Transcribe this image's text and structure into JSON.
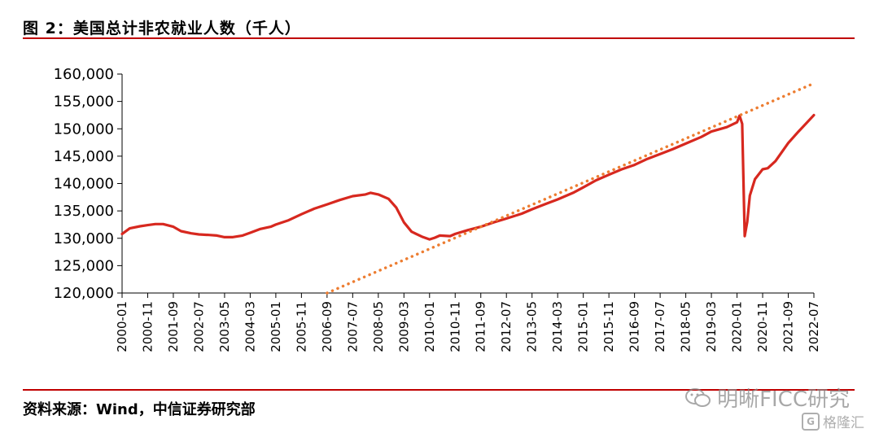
{
  "header": {
    "title": "图 2：美国总计非农就业人数（千人）"
  },
  "footer": {
    "source": "资料来源：Wind，中信证券研究部"
  },
  "watermark": {
    "text": "明晰FICC研究",
    "text2": "格隆汇"
  },
  "colors": {
    "rule": "#c00000",
    "series": "#d7281f",
    "trend": "#ed7d31"
  },
  "chart_data": {
    "type": "line",
    "title": "图 2：美国总计非农就业人数（千人）",
    "xlabel": "",
    "ylabel": "",
    "ylim": [
      120000,
      160000
    ],
    "yticks": [
      "120,000",
      "125,000",
      "130,000",
      "135,000",
      "140,000",
      "145,000",
      "150,000",
      "155,000",
      "160,000"
    ],
    "ytick_values": [
      120000,
      125000,
      130000,
      135000,
      140000,
      145000,
      150000,
      155000,
      160000
    ],
    "xtick_labels": [
      "2000-01",
      "2000-11",
      "2001-09",
      "2002-07",
      "2003-05",
      "2004-03",
      "2005-01",
      "2005-11",
      "2006-09",
      "2007-07",
      "2008-05",
      "2009-03",
      "2010-01",
      "2010-11",
      "2011-09",
      "2012-07",
      "2013-05",
      "2014-03",
      "2015-01",
      "2015-11",
      "2016-09",
      "2017-07",
      "2018-05",
      "2019-03",
      "2020-01",
      "2020-11",
      "2021-09",
      "2022-07"
    ],
    "grid": false,
    "legend": "none",
    "series": [
      {
        "name": "",
        "style": "solid",
        "points": [
          [
            "2000-01",
            130800
          ],
          [
            "2000-04",
            131800
          ],
          [
            "2000-08",
            132200
          ],
          [
            "2000-11",
            132400
          ],
          [
            "2001-02",
            132600
          ],
          [
            "2001-05",
            132600
          ],
          [
            "2001-09",
            132100
          ],
          [
            "2001-12",
            131300
          ],
          [
            "2002-04",
            130900
          ],
          [
            "2002-07",
            130700
          ],
          [
            "2002-11",
            130600
          ],
          [
            "2003-02",
            130500
          ],
          [
            "2003-05",
            130200
          ],
          [
            "2003-08",
            130200
          ],
          [
            "2003-12",
            130500
          ],
          [
            "2004-03",
            131000
          ],
          [
            "2004-07",
            131700
          ],
          [
            "2004-11",
            132100
          ],
          [
            "2005-01",
            132500
          ],
          [
            "2005-06",
            133300
          ],
          [
            "2005-11",
            134400
          ],
          [
            "2006-04",
            135400
          ],
          [
            "2006-09",
            136200
          ],
          [
            "2007-02",
            137000
          ],
          [
            "2007-07",
            137700
          ],
          [
            "2007-12",
            138000
          ],
          [
            "2008-02",
            138300
          ],
          [
            "2008-05",
            138000
          ],
          [
            "2008-09",
            137200
          ],
          [
            "2008-12",
            135600
          ],
          [
            "2009-03",
            132900
          ],
          [
            "2009-06",
            131200
          ],
          [
            "2009-10",
            130300
          ],
          [
            "2010-01",
            129800
          ],
          [
            "2010-03",
            130100
          ],
          [
            "2010-05",
            130500
          ],
          [
            "2010-09",
            130400
          ],
          [
            "2010-11",
            130800
          ],
          [
            "2011-04",
            131500
          ],
          [
            "2011-09",
            132100
          ],
          [
            "2012-02",
            132900
          ],
          [
            "2012-07",
            133600
          ],
          [
            "2013-01",
            134500
          ],
          [
            "2013-05",
            135300
          ],
          [
            "2013-11",
            136400
          ],
          [
            "2014-03",
            137100
          ],
          [
            "2014-09",
            138300
          ],
          [
            "2015-01",
            139300
          ],
          [
            "2015-06",
            140600
          ],
          [
            "2015-11",
            141600
          ],
          [
            "2016-04",
            142600
          ],
          [
            "2016-09",
            143400
          ],
          [
            "2017-02",
            144500
          ],
          [
            "2017-07",
            145400
          ],
          [
            "2017-12",
            146300
          ],
          [
            "2018-05",
            147300
          ],
          [
            "2018-11",
            148500
          ],
          [
            "2019-03",
            149500
          ],
          [
            "2019-09",
            150300
          ],
          [
            "2020-01",
            151200
          ],
          [
            "2020-02",
            152400
          ],
          [
            "2020-03",
            150900
          ],
          [
            "2020-04",
            130400
          ],
          [
            "2020-05",
            133000
          ],
          [
            "2020-06",
            137800
          ],
          [
            "2020-08",
            140800
          ],
          [
            "2020-11",
            142600
          ],
          [
            "2021-01",
            142800
          ],
          [
            "2021-04",
            144100
          ],
          [
            "2021-09",
            147400
          ],
          [
            "2022-01",
            149500
          ],
          [
            "2022-05",
            151500
          ],
          [
            "2022-07",
            152500
          ]
        ]
      },
      {
        "name": "",
        "style": "dotted",
        "points": [
          [
            "2006-09",
            120000
          ],
          [
            "2022-07",
            158300
          ]
        ]
      }
    ]
  }
}
